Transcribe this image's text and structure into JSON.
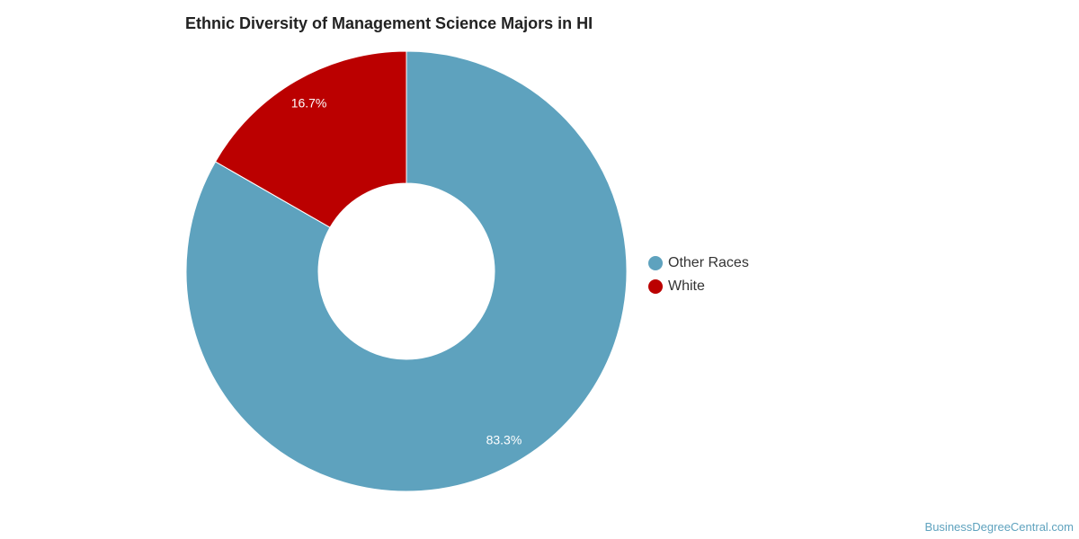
{
  "chart_data": {
    "type": "pie",
    "variant": "donut",
    "title": "Ethnic Diversity of Management Science Majors in HI",
    "categories": [
      "Other Races",
      "White"
    ],
    "values": [
      83.3,
      16.7
    ],
    "value_labels": [
      "83.3%",
      "16.7%"
    ],
    "colors": [
      "#5ea2be",
      "#bb0000"
    ],
    "legend_position": "right"
  },
  "watermark": "BusinessDegreeCentral.com"
}
